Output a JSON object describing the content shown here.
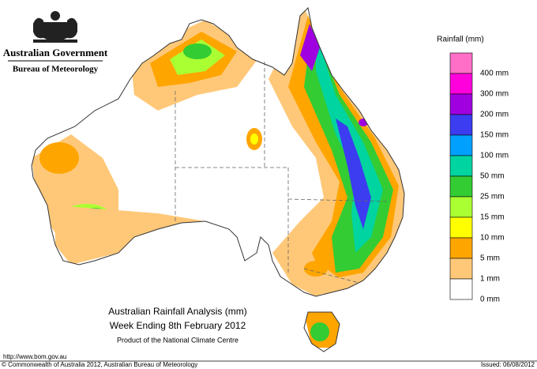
{
  "header": {
    "agency": "Australian Government",
    "bureau": "Bureau of Meteorology"
  },
  "legend": {
    "title": "Rainfall (mm)",
    "items": [
      {
        "label": "400 mm",
        "color": "#ff6ec7"
      },
      {
        "label": "300 mm",
        "color": "#ff00dd"
      },
      {
        "label": "200 mm",
        "color": "#a000e0"
      },
      {
        "label": "150 mm",
        "color": "#3c3cf0"
      },
      {
        "label": "100 mm",
        "color": "#00a0ff"
      },
      {
        "label": "50 mm",
        "color": "#00d4a0"
      },
      {
        "label": "25 mm",
        "color": "#33cc33"
      },
      {
        "label": "15 mm",
        "color": "#aaff33"
      },
      {
        "label": "10 mm",
        "color": "#ffff00"
      },
      {
        "label": "5 mm",
        "color": "#ffa500"
      },
      {
        "label": "1 mm",
        "color": "#ffc878"
      },
      {
        "label": "0 mm",
        "color": "#ffffff"
      }
    ]
  },
  "caption": {
    "title": "Australian Rainfall Analysis (mm)",
    "period": "Week Ending 8th February 2012",
    "producer": "Product of the National Climate Centre"
  },
  "footer": {
    "url": "http://www.bom.gov.au",
    "copyright": "© Commonwealth of Australia 2012, Australian Bureau of Meteorology",
    "issued": "Issued: 06/08/2012"
  }
}
